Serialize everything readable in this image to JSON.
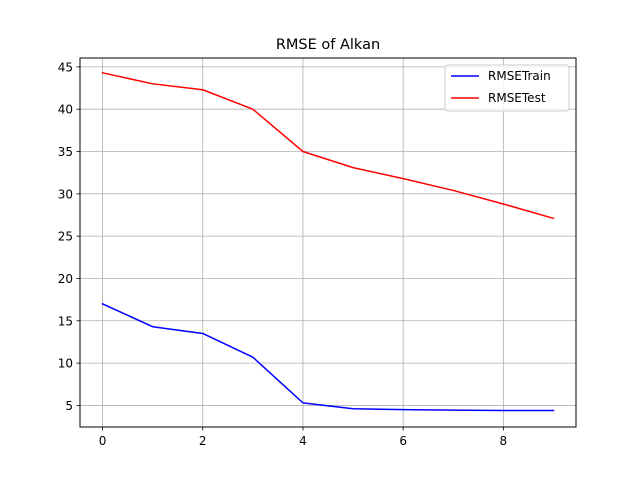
{
  "chart_data": {
    "type": "line",
    "title": "RMSE of Alkan",
    "xlabel": "",
    "ylabel": "",
    "xlim": [
      -0.45,
      9.45
    ],
    "ylim": [
      2.45,
      46.05
    ],
    "xticks": [
      0,
      2,
      4,
      6,
      8
    ],
    "yticks": [
      5,
      10,
      15,
      20,
      25,
      30,
      35,
      40,
      45
    ],
    "grid": true,
    "legend_position": "top-right",
    "x": [
      0,
      1,
      2,
      3,
      4,
      5,
      6,
      7,
      8,
      9
    ],
    "series": [
      {
        "name": "RMSETrain",
        "color": "#0000ff",
        "values": [
          17.0,
          14.3,
          13.5,
          10.7,
          5.3,
          4.6,
          4.5,
          4.45,
          4.4,
          4.4
        ]
      },
      {
        "name": "RMSETest",
        "color": "#ff0000",
        "values": [
          44.3,
          43.0,
          42.3,
          40.0,
          35.0,
          33.1,
          31.8,
          30.4,
          28.8,
          27.1
        ]
      }
    ]
  }
}
